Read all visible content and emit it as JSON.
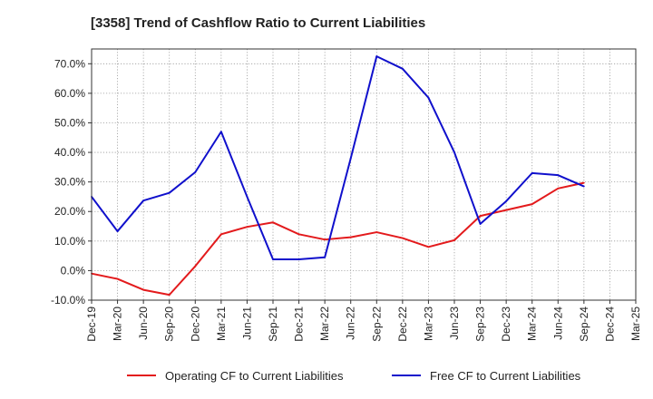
{
  "chart_data": {
    "type": "line",
    "title": "[3358]  Trend of Cashflow Ratio to Current Liabilities",
    "xlabel": "",
    "ylabel": "",
    "ylim": [
      -10,
      75
    ],
    "y_ticks": [
      "-10.0%",
      "0.0%",
      "10.0%",
      "20.0%",
      "30.0%",
      "40.0%",
      "50.0%",
      "60.0%",
      "70.0%"
    ],
    "y_tick_values": [
      -10,
      0,
      10,
      20,
      30,
      40,
      50,
      60,
      70
    ],
    "x_ticks": [
      "Dec-19",
      "Mar-20",
      "Jun-20",
      "Sep-20",
      "Dec-20",
      "Mar-21",
      "Jun-21",
      "Sep-21",
      "Dec-21",
      "Mar-22",
      "Jun-22",
      "Sep-22",
      "Dec-22",
      "Mar-23",
      "Jun-23",
      "Sep-23",
      "Dec-23",
      "Mar-24",
      "Jun-24",
      "Sep-24",
      "Dec-24",
      "Mar-25"
    ],
    "grid": true,
    "legend_position": "bottom",
    "series": [
      {
        "name": "Operating CF to Current Liabilities",
        "color": "#e31a1c",
        "x": [
          "Dec-19",
          "Mar-20",
          "Jun-20",
          "Sep-20",
          "Dec-20",
          "Mar-21",
          "Jun-21",
          "Sep-21",
          "Dec-21",
          "Mar-22",
          "Jun-22",
          "Sep-22",
          "Dec-22",
          "Mar-23",
          "Jun-23",
          "Sep-23",
          "Dec-23",
          "Mar-24",
          "Jun-24",
          "Sep-24"
        ],
        "values": [
          -1.0,
          -2.8,
          -6.5,
          -8.2,
          1.5,
          12.3,
          14.8,
          16.3,
          12.3,
          10.5,
          11.3,
          13.0,
          11.0,
          8.0,
          10.3,
          18.5,
          20.5,
          22.5,
          27.8,
          29.7
        ]
      },
      {
        "name": "Free CF to Current Liabilities",
        "color": "#1010cc",
        "x": [
          "Dec-19",
          "Mar-20",
          "Jun-20",
          "Sep-20",
          "Dec-20",
          "Mar-21",
          "Jun-21",
          "Sep-21",
          "Dec-21",
          "Mar-22",
          "Jun-22",
          "Sep-22",
          "Dec-22",
          "Mar-23",
          "Jun-23",
          "Sep-23",
          "Dec-23",
          "Mar-24",
          "Jun-24",
          "Sep-24"
        ],
        "values": [
          25.0,
          13.3,
          23.7,
          26.3,
          33.3,
          47.0,
          25.0,
          3.8,
          3.8,
          4.5,
          38.0,
          72.5,
          68.3,
          58.5,
          40.0,
          15.8,
          23.5,
          33.0,
          32.3,
          28.5
        ]
      }
    ]
  }
}
